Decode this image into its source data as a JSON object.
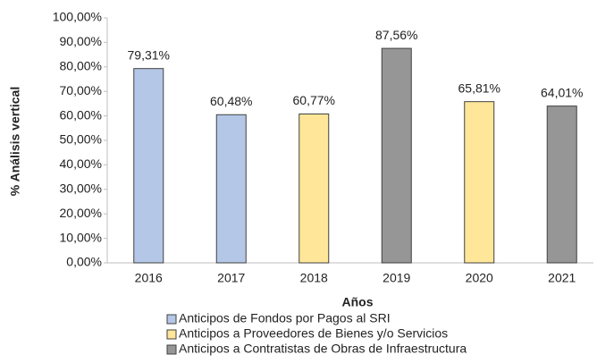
{
  "chart_data": {
    "type": "bar",
    "categories": [
      "2016",
      "2017",
      "2018",
      "2019",
      "2020",
      "2021"
    ],
    "series": [
      {
        "name": "Anticipos de Fondos por Pagos al SRI",
        "color": "#b4c7e7",
        "values": [
          79.31,
          60.48,
          null,
          null,
          null,
          null
        ],
        "value_labels": [
          "79,31%",
          "60,48%",
          null,
          null,
          null,
          null
        ]
      },
      {
        "name": "Anticipos a Proveedores de Bienes y/o Servicios",
        "color": "#ffe699",
        "values": [
          null,
          null,
          60.77,
          null,
          65.81,
          null
        ],
        "value_labels": [
          null,
          null,
          "60,77%",
          null,
          "65,81%",
          null
        ]
      },
      {
        "name": "Anticipos a Contratistas de Obras de Infraestructura",
        "color": "#969696",
        "values": [
          null,
          null,
          null,
          87.56,
          null,
          64.01
        ],
        "value_labels": [
          null,
          null,
          null,
          "87,56%",
          null,
          "64,01%"
        ]
      }
    ],
    "xlabel": "Años",
    "ylabel": "% Análisis vertical",
    "ylim": [
      0,
      100
    ],
    "yticks": [
      {
        "value": 0,
        "label": "0,00%"
      },
      {
        "value": 10,
        "label": "10,00%"
      },
      {
        "value": 20,
        "label": "20,00%"
      },
      {
        "value": 30,
        "label": "30,00%"
      },
      {
        "value": 40,
        "label": "40,00%"
      },
      {
        "value": 50,
        "label": "50,00%"
      },
      {
        "value": 60,
        "label": "60,00%"
      },
      {
        "value": 70,
        "label": "70,00%"
      },
      {
        "value": 80,
        "label": "80,00%"
      },
      {
        "value": 90,
        "label": "90,00%"
      },
      {
        "value": 100,
        "label": "100,00%"
      }
    ],
    "grid": false,
    "legend": "bottom"
  }
}
